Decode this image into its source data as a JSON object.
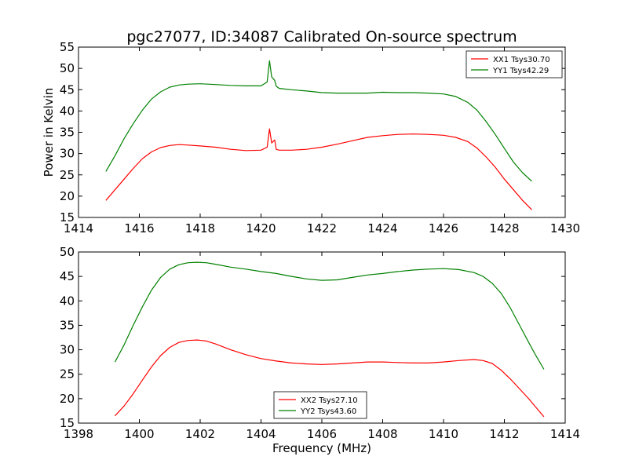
{
  "figure": {
    "title": "pgc27077, ID:34087 Calibrated On-source spectrum"
  },
  "colors": {
    "xx": "#ff0000",
    "yy": "#008000"
  },
  "chart_data": [
    {
      "type": "line",
      "title": "pgc27077, ID:34087 Calibrated On-source spectrum",
      "xlabel": "",
      "ylabel": "Power in Kelvin",
      "xlim": [
        1414,
        1430
      ],
      "ylim": [
        15,
        55
      ],
      "xticks": [
        "1414",
        "1416",
        "1418",
        "1420",
        "1422",
        "1424",
        "1426",
        "1428",
        "1430"
      ],
      "yticks": [
        "15",
        "20",
        "25",
        "30",
        "35",
        "40",
        "45",
        "50",
        "55"
      ],
      "grid": false,
      "legend": "top-right",
      "series": [
        {
          "name": "XX1 Tsys30.70",
          "color": "#ff0000",
          "x": [
            1414.9,
            1415.2,
            1415.5,
            1415.8,
            1416.1,
            1416.4,
            1416.7,
            1417.0,
            1417.3,
            1417.6,
            1418.0,
            1418.5,
            1419.0,
            1419.5,
            1420.0,
            1420.2,
            1420.28,
            1420.35,
            1420.45,
            1420.5,
            1420.6,
            1421.0,
            1421.5,
            1422.0,
            1422.5,
            1423.0,
            1423.5,
            1424.0,
            1424.5,
            1425.0,
            1425.5,
            1426.0,
            1426.4,
            1426.8,
            1427.1,
            1427.4,
            1427.7,
            1428.0,
            1428.3,
            1428.6,
            1428.9
          ],
          "y": [
            19.0,
            21.5,
            24.0,
            26.5,
            28.8,
            30.4,
            31.4,
            31.9,
            32.1,
            32.0,
            31.8,
            31.5,
            31.0,
            30.7,
            30.8,
            31.5,
            35.8,
            32.5,
            33.2,
            31.0,
            30.8,
            30.8,
            31.0,
            31.5,
            32.2,
            33.0,
            33.8,
            34.2,
            34.5,
            34.6,
            34.5,
            34.3,
            33.8,
            32.8,
            31.3,
            29.2,
            26.8,
            24.0,
            21.5,
            19.0,
            16.8
          ]
        },
        {
          "name": "YY1 Tsys42.29",
          "color": "#008000",
          "x": [
            1414.9,
            1415.2,
            1415.5,
            1415.8,
            1416.1,
            1416.4,
            1416.7,
            1417.0,
            1417.3,
            1417.6,
            1418.0,
            1418.5,
            1419.0,
            1419.5,
            1420.0,
            1420.2,
            1420.28,
            1420.35,
            1420.45,
            1420.5,
            1420.6,
            1421.0,
            1421.5,
            1422.0,
            1422.5,
            1423.0,
            1423.5,
            1424.0,
            1424.5,
            1425.0,
            1425.5,
            1426.0,
            1426.4,
            1426.8,
            1427.1,
            1427.4,
            1427.7,
            1428.0,
            1428.3,
            1428.6,
            1428.9
          ],
          "y": [
            25.8,
            29.5,
            33.5,
            37.0,
            40.2,
            42.8,
            44.5,
            45.6,
            46.1,
            46.3,
            46.4,
            46.2,
            46.0,
            45.9,
            45.9,
            46.8,
            51.8,
            48.0,
            47.2,
            45.8,
            45.3,
            45.0,
            44.7,
            44.3,
            44.2,
            44.2,
            44.2,
            44.4,
            44.3,
            44.3,
            44.2,
            44.0,
            43.4,
            42.0,
            40.2,
            37.5,
            34.5,
            31.2,
            28.0,
            25.5,
            23.5
          ]
        }
      ]
    },
    {
      "type": "line",
      "title": "",
      "xlabel": "Frequency (MHz)",
      "ylabel": "",
      "xlim": [
        1398,
        1414
      ],
      "ylim": [
        15,
        50
      ],
      "xticks": [
        "1398",
        "1400",
        "1402",
        "1404",
        "1406",
        "1408",
        "1410",
        "1412",
        "1414"
      ],
      "yticks": [
        "15",
        "20",
        "25",
        "30",
        "35",
        "40",
        "45",
        "50"
      ],
      "grid": false,
      "legend": "bottom-center",
      "series": [
        {
          "name": "XX2 Tsys27.10",
          "color": "#ff0000",
          "x": [
            1399.2,
            1399.5,
            1399.8,
            1400.1,
            1400.4,
            1400.7,
            1401.0,
            1401.3,
            1401.6,
            1401.9,
            1402.2,
            1402.5,
            1403.0,
            1403.5,
            1404.0,
            1404.5,
            1405.0,
            1405.5,
            1406.0,
            1406.5,
            1407.0,
            1407.5,
            1408.0,
            1408.5,
            1409.0,
            1409.5,
            1410.0,
            1410.5,
            1411.0,
            1411.3,
            1411.6,
            1411.9,
            1412.2,
            1412.5,
            1412.8,
            1413.0,
            1413.3
          ],
          "y": [
            16.5,
            18.5,
            21.0,
            23.8,
            26.5,
            28.8,
            30.5,
            31.5,
            31.9,
            32.0,
            31.8,
            31.2,
            30.0,
            29.0,
            28.2,
            27.7,
            27.3,
            27.1,
            27.0,
            27.1,
            27.3,
            27.5,
            27.5,
            27.4,
            27.3,
            27.3,
            27.5,
            27.8,
            28.0,
            27.8,
            27.2,
            25.8,
            24.0,
            22.0,
            20.0,
            18.5,
            16.3
          ]
        },
        {
          "name": "YY2 Tsys43.60",
          "color": "#008000",
          "x": [
            1399.2,
            1399.5,
            1399.8,
            1400.1,
            1400.4,
            1400.7,
            1401.0,
            1401.3,
            1401.6,
            1401.9,
            1402.2,
            1402.5,
            1403.0,
            1403.5,
            1404.0,
            1404.5,
            1405.0,
            1405.5,
            1406.0,
            1406.5,
            1407.0,
            1407.5,
            1408.0,
            1408.5,
            1409.0,
            1409.5,
            1410.0,
            1410.5,
            1411.0,
            1411.3,
            1411.6,
            1411.9,
            1412.2,
            1412.5,
            1412.8,
            1413.0,
            1413.3
          ],
          "y": [
            27.5,
            31.0,
            35.0,
            38.8,
            42.2,
            44.8,
            46.5,
            47.4,
            47.8,
            47.9,
            47.8,
            47.5,
            46.9,
            46.5,
            46.0,
            45.6,
            45.0,
            44.5,
            44.2,
            44.3,
            44.8,
            45.3,
            45.6,
            46.0,
            46.3,
            46.5,
            46.6,
            46.4,
            45.8,
            45.0,
            43.6,
            41.5,
            38.5,
            35.0,
            31.5,
            29.2,
            26.0
          ]
        }
      ]
    }
  ]
}
